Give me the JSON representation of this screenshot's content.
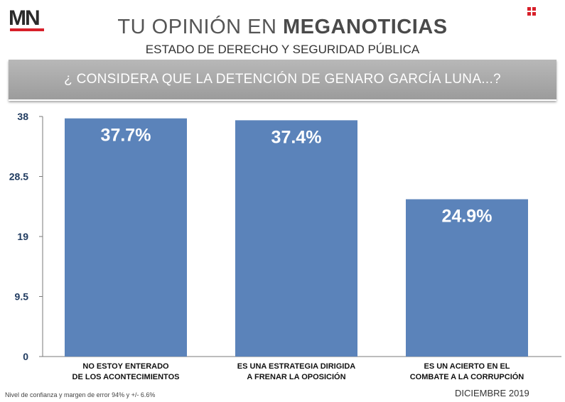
{
  "logo": {
    "text": "MN"
  },
  "header": {
    "title_prefix": "TU OPINIÓN EN",
    "title_brand": "MEGANOTICIAS",
    "subtitle": "ESTADO DE DERECHO Y SEGURIDAD PÚBLICA",
    "question": "¿ CONSIDERA QUE LA DETENCIÓN DE GENARO GARCÍA LUNA...?"
  },
  "colors": {
    "bar": "#5b83ba",
    "brand_red": "#d8202a",
    "question_bg": "#a9a9a9",
    "axis_text": "#1f3a5f"
  },
  "chart_data": {
    "type": "bar",
    "categories": [
      [
        "NO ESTOY ENTERADO",
        "DE LOS ACONTECIMIENTOS"
      ],
      [
        "ES UNA ESTRATEGIA DIRIGIDA",
        "A FRENAR LA OPOSICIÓN"
      ],
      [
        "ES UN ACIERTO EN EL",
        "COMBATE A LA CORRUPCIÓN"
      ]
    ],
    "values": [
      37.7,
      37.4,
      24.9
    ],
    "data_labels": [
      "37.7%",
      "37.4%",
      "24.9%"
    ],
    "yticks": [
      "0",
      "9.5",
      "19",
      "28.5",
      "38"
    ],
    "ylim": [
      0,
      38
    ],
    "grid": false
  },
  "footer": {
    "note": "Nivel de confianza y margen de error 94% y +/- 6.6%",
    "date": "DICIEMBRE 2019"
  }
}
